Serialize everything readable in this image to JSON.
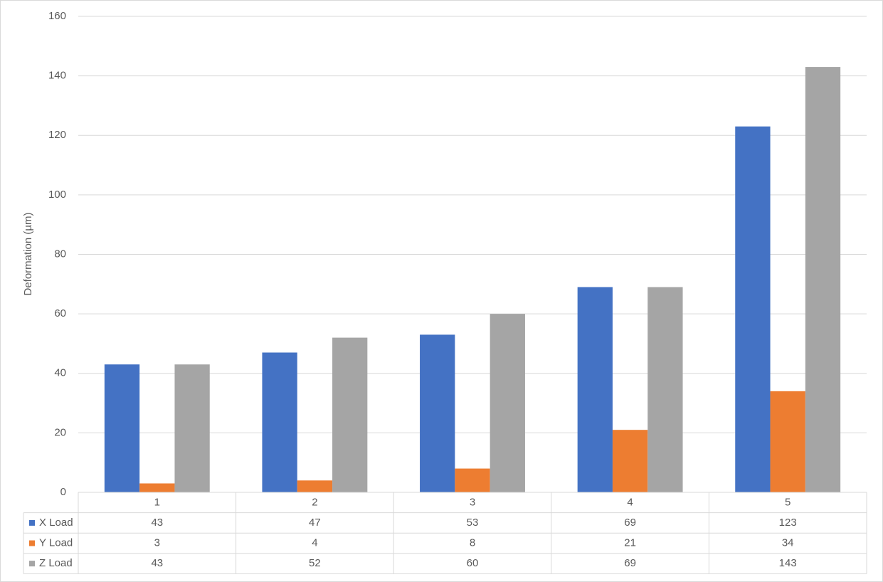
{
  "chart_data": {
    "type": "bar",
    "y_label": "Deformation (µm)",
    "categories": [
      "1",
      "2",
      "3",
      "4",
      "5"
    ],
    "series": [
      {
        "name": "X Load",
        "color": "#4472c4",
        "values": [
          43,
          47,
          53,
          69,
          123
        ]
      },
      {
        "name": "Y Load",
        "color": "#ed7d31",
        "values": [
          3,
          4,
          8,
          21,
          34
        ]
      },
      {
        "name": "Z Load",
        "color": "#a5a5a5",
        "values": [
          43,
          52,
          60,
          69,
          143
        ]
      }
    ],
    "ylim": [
      0,
      160
    ],
    "yticks": [
      0,
      20,
      40,
      60,
      80,
      100,
      120,
      140,
      160
    ],
    "grid": true,
    "data_table": true
  }
}
